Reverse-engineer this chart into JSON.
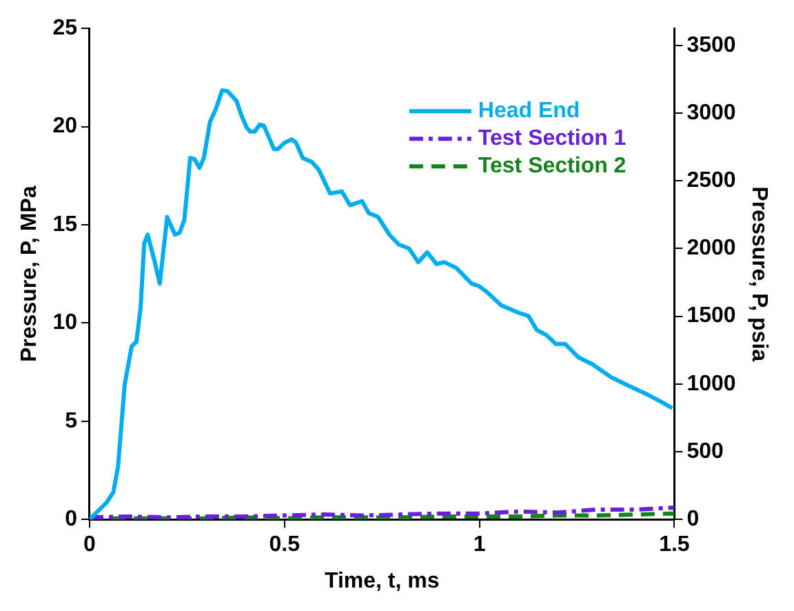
{
  "chart_data": {
    "type": "line",
    "xlabel": "Time, t, ms",
    "ylabel": "Pressure, P, MPa",
    "y2label": "Pressure, P, psia",
    "xlim": [
      0,
      1.5
    ],
    "xticks": [
      0,
      0.5,
      1,
      1.5
    ],
    "ylim": [
      0,
      25
    ],
    "yticks": [
      0,
      5,
      10,
      15,
      20,
      25
    ],
    "y2lim": [
      0,
      3626
    ],
    "y2ticks": [
      0,
      500,
      1000,
      1500,
      2000,
      2500,
      3000,
      3500
    ],
    "grid": false,
    "legend": "top right",
    "marker": "none",
    "series": [
      {
        "name": "Head End",
        "color": "#00aeef",
        "line_style": "solid",
        "x": [
          0,
          0.044,
          0.061,
          0.073,
          0.09,
          0.108,
          0.12,
          0.131,
          0.14,
          0.149,
          0.166,
          0.18,
          0.199,
          0.219,
          0.231,
          0.243,
          0.258,
          0.269,
          0.282,
          0.293,
          0.309,
          0.324,
          0.34,
          0.354,
          0.377,
          0.389,
          0.403,
          0.412,
          0.424,
          0.436,
          0.447,
          0.459,
          0.473,
          0.483,
          0.5,
          0.518,
          0.529,
          0.547,
          0.57,
          0.588,
          0.617,
          0.647,
          0.668,
          0.684,
          0.699,
          0.716,
          0.74,
          0.769,
          0.793,
          0.819,
          0.843,
          0.866,
          0.89,
          0.91,
          0.941,
          0.98,
          0.997,
          1.018,
          1.056,
          1.097,
          1.126,
          1.147,
          1.173,
          1.196,
          1.22,
          1.255,
          1.29,
          1.337,
          1.383,
          1.43,
          1.466,
          1.495
        ],
        "values": [
          0,
          0.87,
          1.39,
          2.7,
          6.86,
          8.82,
          9.04,
          10.8,
          14.05,
          14.5,
          13.2,
          12,
          15.4,
          14.5,
          14.6,
          15.25,
          18.4,
          18.35,
          17.9,
          18.4,
          20.25,
          20.9,
          21.85,
          21.8,
          21.3,
          20.6,
          19.95,
          19.75,
          19.75,
          20.1,
          20.05,
          19.5,
          18.85,
          18.85,
          19.18,
          19.35,
          19.2,
          18.4,
          18.2,
          17.8,
          16.6,
          16.7,
          16,
          16.1,
          16.2,
          15.6,
          15.4,
          14.5,
          14,
          13.8,
          13.1,
          13.6,
          13,
          13.1,
          12.8,
          12,
          11.9,
          11.6,
          10.9,
          10.55,
          10.35,
          9.65,
          9.37,
          8.93,
          8.93,
          8.24,
          7.9,
          7.25,
          6.8,
          6.37,
          5.99,
          5.66
        ]
      },
      {
        "name": "Test Section 1",
        "color": "#6a1fd8",
        "line_style": "dashdot",
        "x": [
          0,
          0.1,
          0.2,
          0.3,
          0.4,
          0.5,
          0.6,
          0.7,
          0.8,
          0.9,
          1,
          1.1,
          1.2,
          1.3,
          1.4,
          1.5
        ],
        "values": [
          0.1,
          0.15,
          0.1,
          0.15,
          0.15,
          0.2,
          0.25,
          0.2,
          0.25,
          0.3,
          0.3,
          0.4,
          0.35,
          0.5,
          0.5,
          0.6
        ]
      },
      {
        "name": "Test Section 2",
        "color": "#12841a",
        "line_style": "dashed",
        "x": [
          0,
          0.1,
          0.2,
          0.3,
          0.4,
          0.5,
          0.6,
          0.7,
          0.8,
          0.9,
          1,
          1.1,
          1.2,
          1.3,
          1.4,
          1.5
        ],
        "values": [
          0.05,
          0.05,
          0.05,
          0.05,
          0.1,
          0.05,
          0.1,
          0.1,
          0.1,
          0.15,
          0.15,
          0.15,
          0.2,
          0.2,
          0.25,
          0.3
        ]
      }
    ]
  }
}
